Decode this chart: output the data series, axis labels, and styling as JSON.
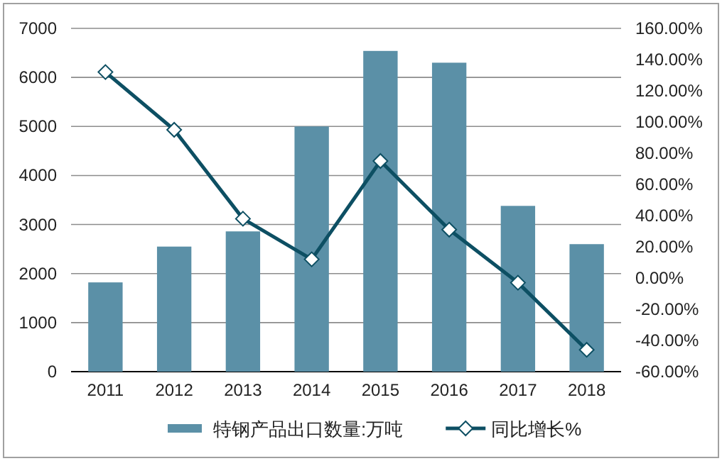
{
  "chart_data": {
    "type": "bar",
    "categories": [
      "2011",
      "2012",
      "2013",
      "2014",
      "2015",
      "2016",
      "2017",
      "2018"
    ],
    "series": [
      {
        "name": "特钢产品出口数量:万吨",
        "color": "#5b90a7",
        "values": [
          1820,
          2550,
          2860,
          5000,
          6540,
          6300,
          3380,
          2600
        ]
      },
      {
        "name": "同比增长%",
        "type": "line",
        "axis": "y2",
        "color": "#0d4f63",
        "values": [
          132,
          95,
          38,
          12,
          75,
          31,
          -3,
          -46
        ]
      }
    ],
    "ylim": [
      0,
      7000
    ],
    "yticks": [
      0,
      1000,
      2000,
      3000,
      4000,
      5000,
      6000,
      7000
    ],
    "y2lim": [
      -60,
      160
    ],
    "y2ticks": [
      {
        "value": -60,
        "label": "-60.00%"
      },
      {
        "value": -40,
        "label": "-40.00%"
      },
      {
        "value": -20,
        "label": "-20.00%"
      },
      {
        "value": 0,
        "label": "0.00%"
      },
      {
        "value": 20,
        "label": "20.00%"
      },
      {
        "value": 40,
        "label": "40.00%"
      },
      {
        "value": 60,
        "label": "60.00%"
      },
      {
        "value": 80,
        "label": "80.00%"
      },
      {
        "value": 100,
        "label": "100.00%"
      },
      {
        "value": 120,
        "label": "120.00%"
      },
      {
        "value": 140,
        "label": "140.00%"
      },
      {
        "value": 160,
        "label": "160.00%"
      }
    ],
    "grid": "y",
    "legend": "bottom",
    "marker": "diamond",
    "line_style": "solid"
  }
}
